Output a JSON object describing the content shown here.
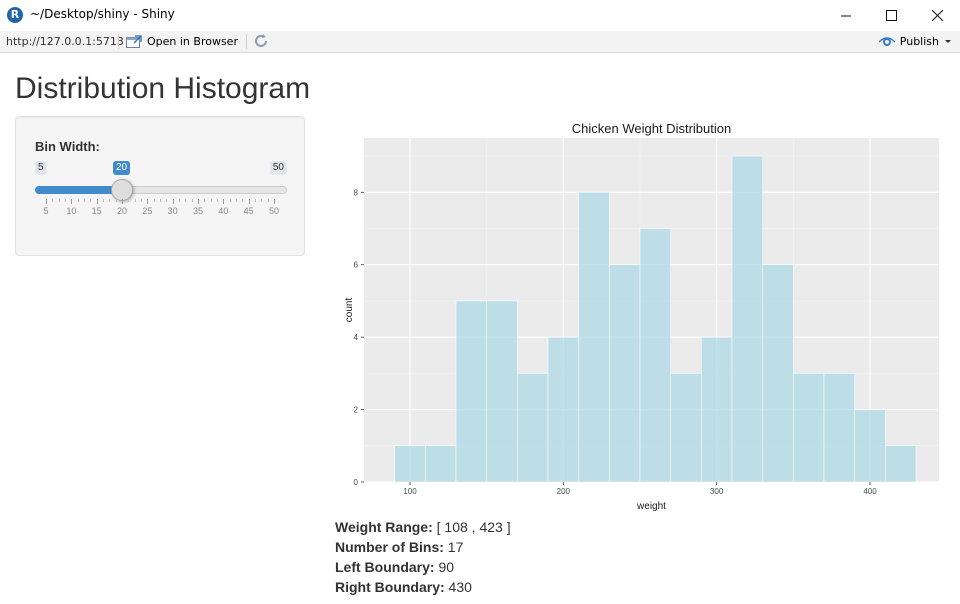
{
  "window": {
    "title": "~/Desktop/shiny - Shiny",
    "app_icon": "R",
    "minimize_icon": "minimize-icon",
    "maximize_icon": "maximize-icon",
    "close_icon": "close-icon"
  },
  "toolbar": {
    "url": "http://127.0.0.1:5713",
    "open_in_browser": "Open in Browser",
    "publish": "Publish"
  },
  "page": {
    "title": "Distribution Histogram"
  },
  "slider": {
    "label": "Bin Width:",
    "min": 5,
    "max": 50,
    "value": 20,
    "min_label": "5",
    "max_label": "50",
    "value_label": "20",
    "ticks": [
      "5",
      "10",
      "15",
      "20",
      "25",
      "30",
      "35",
      "40",
      "45",
      "50"
    ],
    "accent_color": "#428bca"
  },
  "chart_data": {
    "type": "bar",
    "title": "Chicken Weight Distribution",
    "xlabel": "weight",
    "ylabel": "count",
    "bin_edges": [
      90,
      110,
      130,
      150,
      170,
      190,
      210,
      230,
      250,
      270,
      290,
      310,
      330,
      350,
      370,
      390,
      410,
      430
    ],
    "values": [
      1,
      1,
      5,
      5,
      3,
      4,
      8,
      6,
      7,
      3,
      4,
      9,
      6,
      3,
      3,
      2,
      1
    ],
    "xlim": [
      70,
      445
    ],
    "ylim": [
      0,
      9.5
    ],
    "xticks": [
      100,
      200,
      300,
      400
    ],
    "yticks": [
      0,
      2,
      4,
      6,
      8
    ],
    "bar_color": "#add8e6",
    "panel_color": "#ebebeb",
    "grid": true
  },
  "summary": {
    "range_label": "Weight Range:",
    "range_value": "[ 108 , 423 ]",
    "bins_label": "Number of Bins:",
    "bins_value": "17",
    "left_label": "Left Boundary:",
    "left_value": "90",
    "right_label": "Right Boundary:",
    "right_value": "430"
  }
}
